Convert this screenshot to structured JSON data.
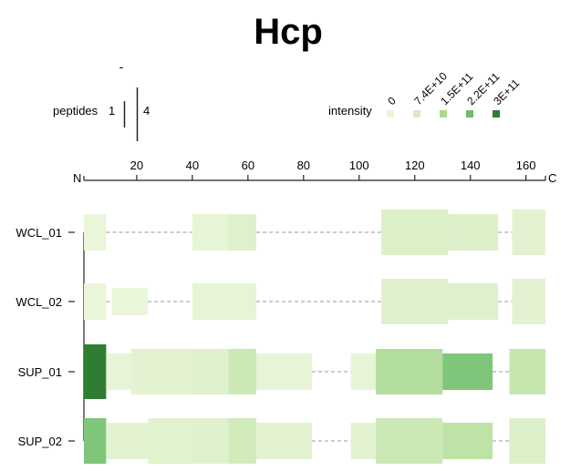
{
  "chart_data": {
    "type": "heatmap",
    "title": "Hcp",
    "axis": {
      "start_label": "N",
      "end_label": "C",
      "xlim": [
        1,
        167
      ],
      "ticks": [
        20,
        40,
        60,
        80,
        100,
        120,
        140,
        160
      ]
    },
    "peptides_legend": {
      "label": "peptides",
      "min_label": "1",
      "max_label": "4",
      "extra_mark": "-"
    },
    "intensity_legend": {
      "label": "intensity",
      "levels": [
        {
          "label": "0",
          "value": 0,
          "color": "#e9f6da"
        },
        {
          "label": "7.4E+10",
          "value": 74000000000,
          "color": "#d6edbf"
        },
        {
          "label": "1.5E+11",
          "value": 150000000000,
          "color": "#a8d98f"
        },
        {
          "label": "2.2E+11",
          "value": 220000000000,
          "color": "#6dbd6b"
        },
        {
          "label": "3E+11",
          "value": 300000000000,
          "color": "#2f7d32"
        }
      ]
    },
    "samples": [
      {
        "name": "WCL_01",
        "segments": [
          {
            "start": 1,
            "end": 9,
            "peptides": 2,
            "intensity": 5000000000,
            "color": "#e9f6da"
          },
          {
            "start": 40,
            "end": 53,
            "peptides": 2,
            "intensity": 8000000000,
            "color": "#e6f5d6"
          },
          {
            "start": 53,
            "end": 63,
            "peptides": 2,
            "intensity": 15000000000,
            "color": "#dff1cc"
          },
          {
            "start": 108,
            "end": 132,
            "peptides": 3,
            "intensity": 20000000000,
            "color": "#dcf0c9"
          },
          {
            "start": 132,
            "end": 150,
            "peptides": 2,
            "intensity": 20000000000,
            "color": "#dcf0c9"
          },
          {
            "start": 155,
            "end": 167,
            "peptides": 3,
            "intensity": 10000000000,
            "color": "#e3f3d1"
          }
        ]
      },
      {
        "name": "WCL_02",
        "segments": [
          {
            "start": 1,
            "end": 9,
            "peptides": 2,
            "intensity": 5000000000,
            "color": "#e9f6da"
          },
          {
            "start": 11,
            "end": 24,
            "peptides": 1,
            "intensity": 5000000000,
            "color": "#e9f6da"
          },
          {
            "start": 40,
            "end": 63,
            "peptides": 2,
            "intensity": 8000000000,
            "color": "#e6f5d6"
          },
          {
            "start": 108,
            "end": 132,
            "peptides": 3,
            "intensity": 15000000000,
            "color": "#dff1cc"
          },
          {
            "start": 132,
            "end": 150,
            "peptides": 2,
            "intensity": 15000000000,
            "color": "#dff1cc"
          },
          {
            "start": 155,
            "end": 167,
            "peptides": 3,
            "intensity": 10000000000,
            "color": "#e3f3d1"
          }
        ]
      },
      {
        "name": "SUP_01",
        "segments": [
          {
            "start": 1,
            "end": 9,
            "peptides": 4,
            "intensity": 300000000000,
            "color": "#2f7d32"
          },
          {
            "start": 9,
            "end": 18,
            "peptides": 2,
            "intensity": 8000000000,
            "color": "#e6f5d6"
          },
          {
            "start": 18,
            "end": 40,
            "peptides": 3,
            "intensity": 10000000000,
            "color": "#e3f3d1"
          },
          {
            "start": 40,
            "end": 53,
            "peptides": 3,
            "intensity": 15000000000,
            "color": "#dff1cc"
          },
          {
            "start": 53,
            "end": 63,
            "peptides": 3,
            "intensity": 40000000000,
            "color": "#cce8b5"
          },
          {
            "start": 63,
            "end": 83,
            "peptides": 2,
            "intensity": 8000000000,
            "color": "#e6f5d6"
          },
          {
            "start": 97,
            "end": 106,
            "peptides": 2,
            "intensity": 8000000000,
            "color": "#e6f5d6"
          },
          {
            "start": 106,
            "end": 130,
            "peptides": 3,
            "intensity": 100000000000,
            "color": "#b3dd9c"
          },
          {
            "start": 130,
            "end": 148,
            "peptides": 2,
            "intensity": 200000000000,
            "color": "#7fc67b"
          },
          {
            "start": 154,
            "end": 167,
            "peptides": 3,
            "intensity": 60000000000,
            "color": "#c6e6ad"
          }
        ]
      },
      {
        "name": "SUP_02",
        "segments": [
          {
            "start": 1,
            "end": 9,
            "peptides": 3,
            "intensity": 180000000000,
            "color": "#7fc67b"
          },
          {
            "start": 9,
            "end": 24,
            "peptides": 2,
            "intensity": 10000000000,
            "color": "#e3f3d1"
          },
          {
            "start": 24,
            "end": 40,
            "peptides": 3,
            "intensity": 12000000000,
            "color": "#e1f2ce"
          },
          {
            "start": 40,
            "end": 53,
            "peptides": 3,
            "intensity": 15000000000,
            "color": "#dff1cc"
          },
          {
            "start": 53,
            "end": 63,
            "peptides": 3,
            "intensity": 30000000000,
            "color": "#d2ebbb"
          },
          {
            "start": 63,
            "end": 83,
            "peptides": 2,
            "intensity": 10000000000,
            "color": "#e3f3d1"
          },
          {
            "start": 97,
            "end": 106,
            "peptides": 2,
            "intensity": 10000000000,
            "color": "#e3f3d1"
          },
          {
            "start": 106,
            "end": 130,
            "peptides": 3,
            "intensity": 50000000000,
            "color": "#cce8b5"
          },
          {
            "start": 130,
            "end": 148,
            "peptides": 2,
            "intensity": 90000000000,
            "color": "#bfe3a6"
          },
          {
            "start": 154,
            "end": 167,
            "peptides": 3,
            "intensity": 20000000000,
            "color": "#dcf0c9"
          }
        ]
      }
    ]
  }
}
